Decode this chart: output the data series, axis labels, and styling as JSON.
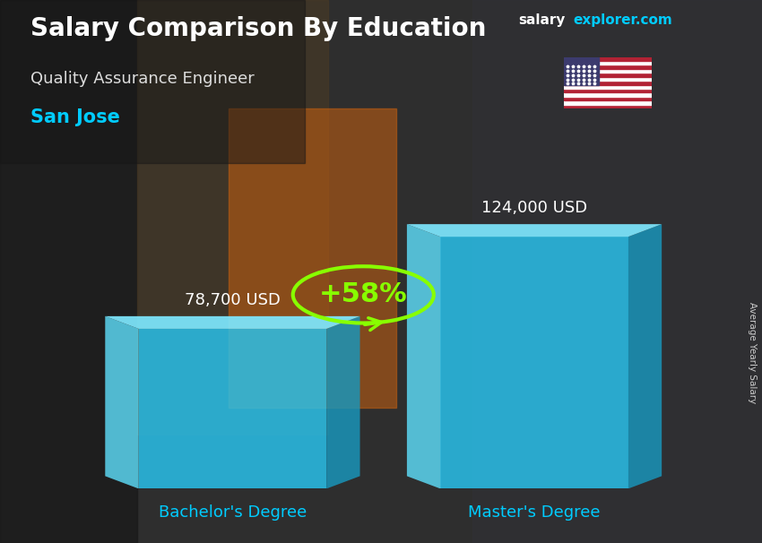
{
  "title_bold": "Salary Comparison By Education",
  "subtitle": "Quality Assurance Engineer",
  "city": "San Jose",
  "categories": [
    "Bachelor's Degree",
    "Master's Degree"
  ],
  "values": [
    78700,
    124000
  ],
  "value_labels": [
    "78,700 USD",
    "124,000 USD"
  ],
  "pct_change": "+58%",
  "bar_face_color": "#29c5f0",
  "bar_left_color": "#5ddcf8",
  "bar_right_color": "#1898be",
  "bar_top_color": "#7ee8ff",
  "bg_color": "#3a3a3a",
  "title_color": "#ffffff",
  "subtitle_color": "#dddddd",
  "city_color": "#00ccff",
  "label_color": "#ffffff",
  "xlabel_color": "#00ccff",
  "pct_color": "#88ff00",
  "arrow_color": "#88ff00",
  "watermark_white": "salary",
  "watermark_blue": "explorer.com",
  "side_label": "Average Yearly Salary",
  "ymax": 155000,
  "bar_alpha": 0.82
}
